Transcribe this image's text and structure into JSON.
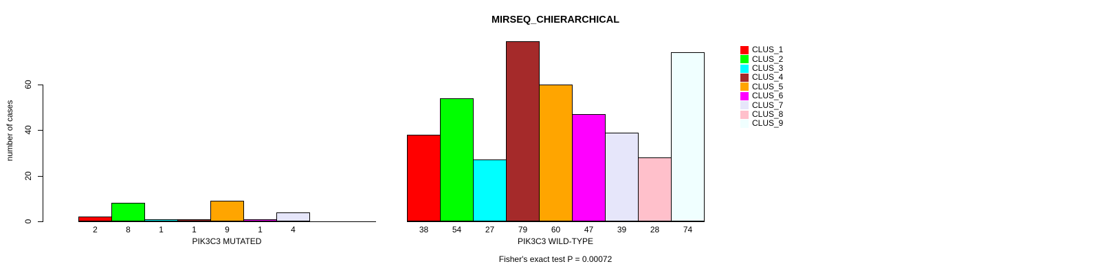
{
  "chart_data": {
    "type": "bar",
    "title": "MIRSEQ_CHIERARCHICAL",
    "ylabel": "number of cases",
    "yticks": [
      0,
      20,
      40,
      60
    ],
    "ylim": [
      0,
      80
    ],
    "grid": false,
    "legend_position": "right",
    "legend": [
      {
        "label": "CLUS_1",
        "color": "#FF0000"
      },
      {
        "label": "CLUS_2",
        "color": "#00FF00"
      },
      {
        "label": "CLUS_3",
        "color": "#00FFFF"
      },
      {
        "label": "CLUS_4",
        "color": "#A52A2A"
      },
      {
        "label": "CLUS_5",
        "color": "#FFA500"
      },
      {
        "label": "CLUS_6",
        "color": "#FF00FF"
      },
      {
        "label": "CLUS_7",
        "color": "#E6E6FA"
      },
      {
        "label": "CLUS_8",
        "color": "#FFC0CB"
      },
      {
        "label": "CLUS_9",
        "color": "#F0FFFF"
      }
    ],
    "groups": [
      {
        "xlabel": "PIK3C3 MUTATED",
        "values": [
          2,
          8,
          1,
          1,
          9,
          1,
          4,
          0,
          0
        ],
        "bar_labels": [
          "2",
          "8",
          "1",
          "1",
          "9",
          "1",
          "4",
          "",
          ""
        ]
      },
      {
        "xlabel": "PIK3C3 WILD-TYPE",
        "values": [
          38,
          54,
          27,
          79,
          60,
          47,
          39,
          28,
          74
        ],
        "bar_labels": [
          "38",
          "54",
          "27",
          "79",
          "60",
          "47",
          "39",
          "28",
          "74"
        ]
      }
    ],
    "annotation": "Fisher's exact test P = 0.00072",
    "bar_border_color": "#000000",
    "axis_color": "#000000"
  }
}
